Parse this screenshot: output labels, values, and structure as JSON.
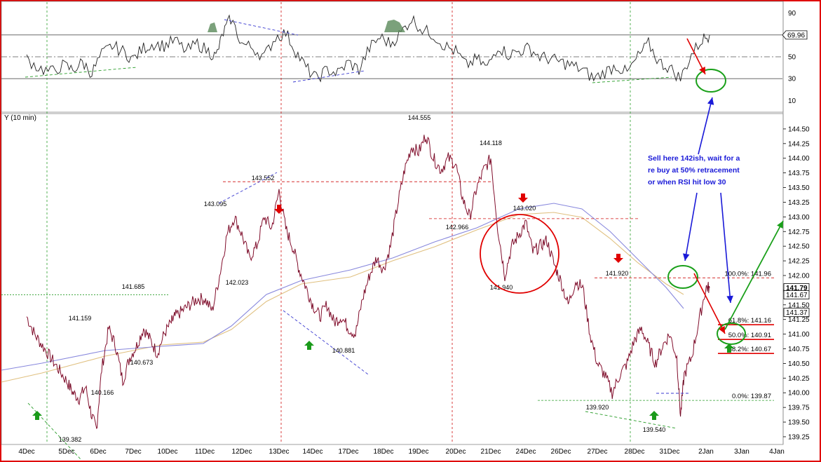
{
  "chart": {
    "panel_title": "Y (10 min)",
    "note": [
      "Sell here 142ish, wait for a",
      "re buy at 50% retracement",
      "or when RSI hit low 30"
    ]
  },
  "chart_data": {
    "type": "line",
    "instrument": "Y (10 min)",
    "x_ticks": [
      "4Dec",
      "5Dec",
      "6Dec",
      "7Dec",
      "10Dec",
      "11Dec",
      "12Dec",
      "13Dec",
      "14Dec",
      "17Dec",
      "18Dec",
      "19Dec",
      "20Dec",
      "21Dec",
      "24Dec",
      "26Dec",
      "27Dec",
      "28Dec",
      "31Dec",
      "2Jan",
      "3Jan",
      "4Jan"
    ],
    "y_ticks": [
      "139.25",
      "139.50",
      "139.75",
      "140.00",
      "140.25",
      "140.50",
      "140.75",
      "141.00",
      "141.25",
      "141.50",
      "141.75",
      "142.00",
      "142.25",
      "142.50",
      "142.75",
      "143.00",
      "143.25",
      "143.50",
      "143.75",
      "144.00",
      "144.25",
      "144.50"
    ],
    "ylim": [
      139.13,
      144.75
    ],
    "rsi_ticks": [
      "10",
      "30",
      "50",
      "70",
      "90"
    ],
    "rsi_ylim": [
      0,
      100
    ],
    "price_labels": [
      {
        "text": "139.382",
        "value": 139.382
      },
      {
        "text": "140.166",
        "value": 140.166
      },
      {
        "text": "141.159",
        "value": 141.159
      },
      {
        "text": "140.673",
        "value": 140.673
      },
      {
        "text": "141.685",
        "value": 141.685
      },
      {
        "text": "143.095",
        "value": 143.095
      },
      {
        "text": "142.023",
        "value": 142.023
      },
      {
        "text": "143.552",
        "value": 143.552
      },
      {
        "text": "140.881",
        "value": 140.881
      },
      {
        "text": "144.555",
        "value": 144.555
      },
      {
        "text": "144.118",
        "value": 144.118
      },
      {
        "text": "142.966",
        "value": 142.966
      },
      {
        "text": "143.020",
        "value": 143.02
      },
      {
        "text": "141.940",
        "value": 141.94
      },
      {
        "text": "141.920",
        "value": 141.92
      },
      {
        "text": "139.920",
        "value": 139.92
      },
      {
        "text": "139.540",
        "value": 139.54
      }
    ],
    "fib_levels": [
      {
        "label": "100.0%: 141.96",
        "value": 141.96
      },
      {
        "label": "61.8%: 141.16",
        "value": 141.16
      },
      {
        "label": "50.0%: 140.91",
        "value": 140.91
      },
      {
        "label": "38.2%: 140.67",
        "value": 140.67
      },
      {
        "label": "0.0%: 139.87",
        "value": 139.87
      }
    ],
    "right_axis_tags": [
      {
        "text": "141.79",
        "value": 141.79,
        "bold": true
      },
      {
        "text": "141.67",
        "value": 141.67
      },
      {
        "text": "141.37",
        "value": 141.37
      }
    ],
    "rsi_current": {
      "text": "69.96",
      "value": 69.96
    },
    "price_path": [
      [
        0.0,
        141.3
      ],
      [
        0.2,
        141.0
      ],
      [
        0.4,
        140.8
      ],
      [
        0.6,
        140.6
      ],
      [
        0.8,
        140.4
      ],
      [
        1.0,
        140.2
      ],
      [
        1.2,
        140.0
      ],
      [
        1.4,
        139.9
      ],
      [
        1.6,
        140.1
      ],
      [
        1.8,
        139.6
      ],
      [
        1.95,
        139.38
      ],
      [
        2.1,
        140.4
      ],
      [
        2.3,
        141.1
      ],
      [
        2.5,
        140.8
      ],
      [
        2.7,
        140.2
      ],
      [
        2.9,
        140.6
      ],
      [
        3.1,
        140.8
      ],
      [
        3.3,
        141.1
      ],
      [
        3.5,
        140.9
      ],
      [
        3.7,
        140.67
      ],
      [
        3.9,
        141.0
      ],
      [
        4.1,
        141.2
      ],
      [
        4.2,
        141.3
      ],
      [
        4.4,
        141.4
      ],
      [
        4.6,
        141.5
      ],
      [
        4.8,
        141.6
      ],
      [
        5.0,
        141.6
      ],
      [
        5.2,
        141.4
      ],
      [
        5.4,
        142.0
      ],
      [
        5.6,
        142.7
      ],
      [
        5.8,
        143.0
      ],
      [
        6.0,
        142.7
      ],
      [
        6.2,
        142.3
      ],
      [
        6.4,
        142.5
      ],
      [
        6.6,
        143.0
      ],
      [
        6.8,
        142.8
      ],
      [
        7.0,
        143.45
      ],
      [
        7.2,
        142.8
      ],
      [
        7.4,
        142.5
      ],
      [
        7.6,
        142.1
      ],
      [
        7.8,
        141.8
      ],
      [
        8.0,
        141.5
      ],
      [
        8.2,
        141.3
      ],
      [
        8.4,
        141.5
      ],
      [
        8.6,
        141.2
      ],
      [
        8.8,
        141.3
      ],
      [
        9.0,
        141.1
      ],
      [
        9.2,
        141.0
      ],
      [
        9.4,
        141.6
      ],
      [
        9.6,
        142.0
      ],
      [
        9.8,
        142.3
      ],
      [
        10.0,
        142.1
      ],
      [
        10.2,
        142.5
      ],
      [
        10.4,
        143.2
      ],
      [
        10.6,
        143.8
      ],
      [
        10.8,
        144.2
      ],
      [
        11.0,
        144.1
      ],
      [
        11.2,
        144.4
      ],
      [
        11.4,
        144.0
      ],
      [
        11.6,
        143.8
      ],
      [
        11.8,
        144.0
      ],
      [
        12.0,
        143.9
      ],
      [
        12.2,
        143.3
      ],
      [
        12.4,
        143.0
      ],
      [
        12.6,
        143.5
      ],
      [
        12.8,
        143.8
      ],
      [
        13.0,
        144.0
      ],
      [
        13.2,
        142.8
      ],
      [
        13.4,
        142.0
      ],
      [
        13.6,
        142.5
      ],
      [
        13.8,
        142.7
      ],
      [
        14.0,
        142.9
      ],
      [
        14.2,
        142.4
      ],
      [
        14.4,
        142.5
      ],
      [
        14.6,
        142.6
      ],
      [
        14.8,
        142.2
      ],
      [
        15.0,
        141.9
      ],
      [
        15.2,
        141.5
      ],
      [
        15.4,
        141.9
      ],
      [
        15.6,
        141.8
      ],
      [
        15.8,
        141.0
      ],
      [
        16.0,
        140.5
      ],
      [
        16.2,
        140.3
      ],
      [
        16.4,
        140.0
      ],
      [
        16.6,
        140.3
      ],
      [
        16.8,
        140.5
      ],
      [
        17.0,
        140.9
      ],
      [
        17.2,
        141.1
      ],
      [
        17.4,
        140.8
      ],
      [
        17.6,
        140.5
      ],
      [
        17.8,
        140.8
      ],
      [
        18.0,
        141.0
      ],
      [
        18.2,
        140.6
      ],
      [
        18.3,
        139.6
      ],
      [
        18.4,
        140.3
      ],
      [
        18.6,
        140.6
      ],
      [
        18.8,
        141.2
      ],
      [
        19.0,
        141.8
      ],
      [
        19.1,
        141.79
      ]
    ],
    "rsi_path": [
      [
        0.0,
        48
      ],
      [
        0.3,
        40
      ],
      [
        0.6,
        36
      ],
      [
        0.9,
        42
      ],
      [
        1.2,
        38
      ],
      [
        1.5,
        45
      ],
      [
        1.8,
        35
      ],
      [
        2.1,
        52
      ],
      [
        2.4,
        60
      ],
      [
        2.7,
        55
      ],
      [
        3.0,
        48
      ],
      [
        3.3,
        58
      ],
      [
        3.6,
        62
      ],
      [
        3.9,
        60
      ],
      [
        4.2,
        65
      ],
      [
        4.5,
        55
      ],
      [
        4.8,
        62
      ],
      [
        5.1,
        55
      ],
      [
        5.3,
        50
      ],
      [
        5.5,
        72
      ],
      [
        5.7,
        85
      ],
      [
        6.0,
        62
      ],
      [
        6.3,
        58
      ],
      [
        6.6,
        50
      ],
      [
        6.9,
        68
      ],
      [
        7.2,
        72
      ],
      [
        7.5,
        55
      ],
      [
        7.8,
        40
      ],
      [
        8.1,
        30
      ],
      [
        8.4,
        38
      ],
      [
        8.7,
        35
      ],
      [
        9.0,
        45
      ],
      [
        9.3,
        38
      ],
      [
        9.6,
        58
      ],
      [
        9.9,
        68
      ],
      [
        10.2,
        62
      ],
      [
        10.5,
        72
      ],
      [
        10.8,
        85
      ],
      [
        11.1,
        75
      ],
      [
        11.4,
        70
      ],
      [
        11.7,
        60
      ],
      [
        12.0,
        55
      ],
      [
        12.3,
        42
      ],
      [
        12.6,
        48
      ],
      [
        12.9,
        40
      ],
      [
        13.2,
        60
      ],
      [
        13.5,
        52
      ],
      [
        13.8,
        55
      ],
      [
        14.1,
        58
      ],
      [
        14.4,
        50
      ],
      [
        14.7,
        48
      ],
      [
        15.0,
        45
      ],
      [
        15.3,
        42
      ],
      [
        15.6,
        38
      ],
      [
        15.9,
        30
      ],
      [
        16.2,
        36
      ],
      [
        16.5,
        42
      ],
      [
        16.8,
        35
      ],
      [
        17.1,
        50
      ],
      [
        17.4,
        62
      ],
      [
        17.7,
        45
      ],
      [
        18.0,
        40
      ],
      [
        18.3,
        30
      ],
      [
        18.6,
        52
      ],
      [
        18.9,
        66
      ],
      [
        19.1,
        69.96
      ]
    ]
  }
}
